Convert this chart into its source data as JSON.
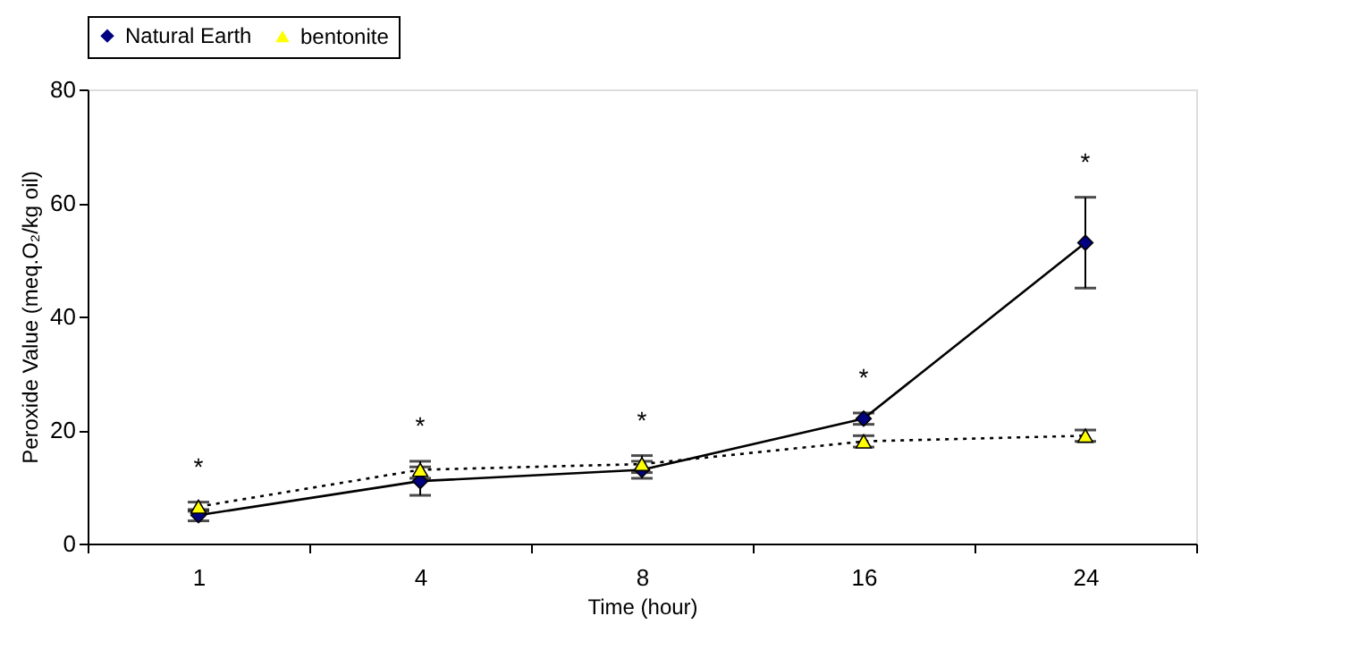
{
  "chart_data": {
    "type": "line",
    "xlabel": "Time (hour)",
    "ylabel": "Peroxide Value (meq.O₂/kg oil)",
    "categories": [
      "1",
      "4",
      "8",
      "16",
      "24"
    ],
    "series": [
      {
        "name": "Natural Earth",
        "color": "#000080",
        "marker": "diamond",
        "line_style": "solid",
        "values": [
          5,
          11,
          13,
          22,
          53
        ],
        "errors": [
          1,
          2.5,
          1.5,
          1,
          8
        ]
      },
      {
        "name": "bentonite",
        "color": "#ffff00",
        "marker": "triangle",
        "line_style": "dotted",
        "values": [
          6.5,
          13,
          14,
          18,
          19
        ],
        "errors": [
          0.8,
          1.5,
          1.5,
          1,
          1
        ]
      }
    ],
    "ylim": [
      0,
      80
    ],
    "yticks": [
      0,
      20,
      40,
      60,
      80
    ],
    "grid": false,
    "legend": "top",
    "annotations": [
      "*",
      "*",
      "*",
      "*",
      "*"
    ]
  }
}
